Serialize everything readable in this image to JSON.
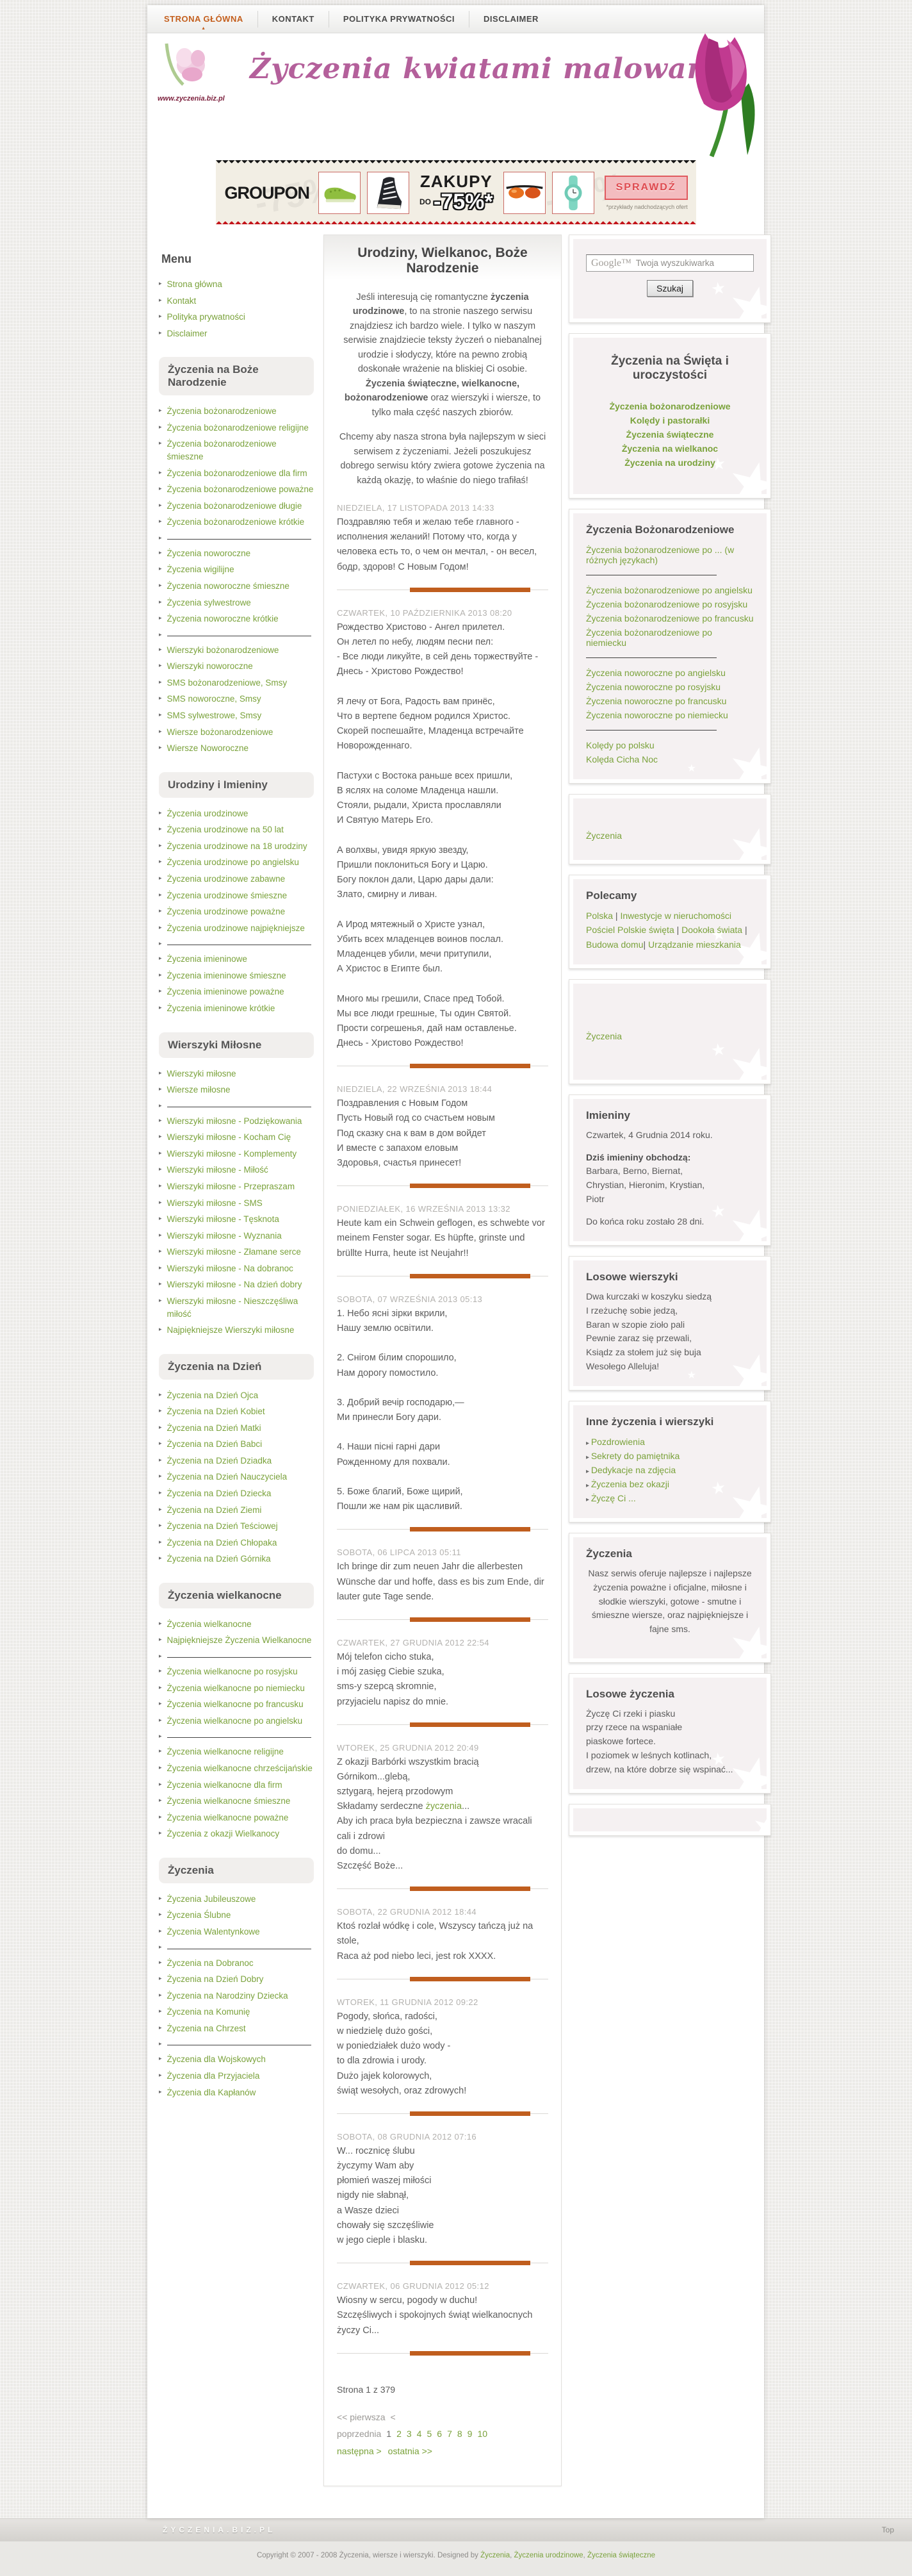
{
  "nav": {
    "items": [
      {
        "label": "STRONA GŁÓWNA",
        "active": true
      },
      {
        "label": "KONTAKT",
        "active": false
      },
      {
        "label": "POLITYKA PRYWATNOŚCI",
        "active": false
      },
      {
        "label": "DISCLAIMER",
        "active": false
      }
    ]
  },
  "header": {
    "title": "Życzenia kwiatami malowane",
    "url": "www.zyczenia.biz.pl"
  },
  "banner": {
    "brand": "GROUPON",
    "headline": "ZAKUPY",
    "do_label": "DO",
    "discount": "-75%*",
    "button": "SPRAWDŹ",
    "note": "*przykłady nadchodzących ofert",
    "watermark": "-75%"
  },
  "sidebar": {
    "heading": "Menu",
    "sections": [
      {
        "title": null,
        "items": [
          {
            "t": "Strona główna"
          },
          {
            "t": "Kontakt"
          },
          {
            "t": "Polityka prywatności"
          },
          {
            "t": "Disclaimer"
          }
        ]
      },
      {
        "title": "Życzenia na Boże Narodzenie",
        "items": [
          {
            "t": "Życzenia bożonarodzeniowe"
          },
          {
            "t": "Życzenia bożonarodzeniowe religijne"
          },
          {
            "t": "Życzenia bożonarodzeniowe śmieszne"
          },
          {
            "t": "Życzenia bożonarodzeniowe dla firm"
          },
          {
            "t": "Życzenia bożonarodzeniowe poważne"
          },
          {
            "t": "Życzenia bożonarodzeniowe długie"
          },
          {
            "t": "Życzenia bożonarodzeniowe krótkie"
          },
          {
            "d": true
          },
          {
            "t": "Życzenia noworoczne"
          },
          {
            "t": "Życzenia wigilijne"
          },
          {
            "t": "Życzenia noworoczne śmieszne"
          },
          {
            "t": "Życzenia sylwestrowe"
          },
          {
            "t": "Życzenia noworoczne krótkie"
          },
          {
            "d": true
          },
          {
            "t": "Wierszyki bożonarodzeniowe"
          },
          {
            "t": "Wierszyki noworoczne"
          },
          {
            "t": "SMS bożonarodzeniowe, Smsy"
          },
          {
            "t": "SMS noworoczne, Smsy"
          },
          {
            "t": "SMS sylwestrowe, Smsy"
          },
          {
            "t": "Wiersze bożonarodzeniowe"
          },
          {
            "t": "Wiersze Noworoczne"
          }
        ]
      },
      {
        "title": "Urodziny i Imieniny",
        "items": [
          {
            "t": "Życzenia urodzinowe"
          },
          {
            "t": "Życzenia urodzinowe na 50 lat"
          },
          {
            "t": "Życzenia urodzinowe na 18 urodziny"
          },
          {
            "t": "Życzenia urodzinowe po angielsku"
          },
          {
            "t": "Życzenia urodzinowe zabawne"
          },
          {
            "t": "Życzenia urodzinowe śmieszne"
          },
          {
            "t": "Życzenia urodzinowe poważne"
          },
          {
            "t": "Życzenia urodzinowe najpiękniejsze"
          },
          {
            "d": true
          },
          {
            "t": "Życzenia imieninowe"
          },
          {
            "t": "Życzenia imieninowe śmieszne"
          },
          {
            "t": "Życzenia imieninowe poważne"
          },
          {
            "t": "Życzenia imieninowe krótkie"
          }
        ]
      },
      {
        "title": "Wierszyki Miłosne",
        "items": [
          {
            "t": "Wierszyki miłosne"
          },
          {
            "t": "Wiersze miłosne"
          },
          {
            "d": true
          },
          {
            "t": "Wierszyki miłosne - Podziękowania"
          },
          {
            "t": "Wierszyki miłosne - Kocham Cię"
          },
          {
            "t": "Wierszyki miłosne - Komplementy"
          },
          {
            "t": "Wierszyki miłosne - Miłość"
          },
          {
            "t": "Wierszyki miłosne - Przepraszam"
          },
          {
            "t": "Wierszyki miłosne - SMS"
          },
          {
            "t": "Wierszyki miłosne - Tęsknota"
          },
          {
            "t": "Wierszyki miłosne - Wyznania"
          },
          {
            "t": "Wierszyki miłosne - Złamane serce"
          },
          {
            "t": "Wierszyki miłosne - Na dobranoc"
          },
          {
            "t": "Wierszyki miłosne - Na dzień dobry"
          },
          {
            "t": "Wierszyki miłosne - Nieszczęśliwa miłość"
          },
          {
            "t": "Najpiękniejsze Wierszyki miłosne"
          }
        ]
      },
      {
        "title": "Życzenia na Dzień",
        "items": [
          {
            "t": "Życzenia na Dzień Ojca"
          },
          {
            "t": "Życzenia na Dzień Kobiet"
          },
          {
            "t": "Życzenia na Dzień Matki"
          },
          {
            "t": "Życzenia na Dzień Babci"
          },
          {
            "t": "Życzenia na Dzień Dziadka"
          },
          {
            "t": "Życzenia na Dzień Nauczyciela"
          },
          {
            "t": "Życzenia na Dzień Dziecka"
          },
          {
            "t": "Życzenia na Dzień Ziemi"
          },
          {
            "t": "Życzenia na Dzień Teściowej"
          },
          {
            "t": "Życzenia na Dzień Chłopaka"
          },
          {
            "t": "Życzenia na Dzień Górnika"
          }
        ]
      },
      {
        "title": "Życzenia wielkanocne",
        "items": [
          {
            "t": "Życzenia wielkanocne"
          },
          {
            "t": "Najpiękniejsze Życzenia Wielkanocne"
          },
          {
            "d": true
          },
          {
            "t": "Życzenia wielkanocne po rosyjsku"
          },
          {
            "t": "Życzenia wielkanocne po niemiecku"
          },
          {
            "t": "Życzenia wielkanocne po francusku"
          },
          {
            "t": "Życzenia wielkanocne po angielsku"
          },
          {
            "d": true
          },
          {
            "t": "Życzenia wielkanocne religijne"
          },
          {
            "t": "Życzenia wielkanocne chrześcijańskie"
          },
          {
            "t": "Życzenia wielkanocne dla firm"
          },
          {
            "t": "Życzenia wielkanocne śmieszne"
          },
          {
            "t": "Życzenia wielkanocne poważne"
          },
          {
            "t": "Życzenia z okazji Wielkanocy"
          }
        ]
      },
      {
        "title": "Życzenia",
        "items": [
          {
            "t": "Życzenia Jubileuszowe"
          },
          {
            "t": "Życzenia Ślubne"
          },
          {
            "t": "Życzenia Walentynkowe"
          },
          {
            "d": true
          },
          {
            "t": "Życzenia na Dobranoc"
          },
          {
            "t": "Życzenia na Dzień Dobry"
          },
          {
            "t": "Życzenia na Narodziny Dziecka"
          },
          {
            "t": "Życzenia na Komunię"
          },
          {
            "t": "Życzenia na Chrzest"
          },
          {
            "d": true
          },
          {
            "t": "Życzenia dla Wojskowych"
          },
          {
            "t": "Życzenia dla Przyjaciela"
          },
          {
            "t": "Życzenia dla Kapłanów"
          }
        ]
      }
    ]
  },
  "main": {
    "title": "Urodziny, Wielkanoc, Boże Narodzenie",
    "intro1": [
      {
        "text": "Jeśli interesują cię romantyczne "
      },
      {
        "text": "życzenia urodzinowe",
        "style": "bold"
      },
      {
        "text": ", to na stronie naszego serwisu znajdziesz ich bardzo wiele. I tylko w naszym serwisie znajdziecie teksty życzeń o niebanalnej urodzie i słodyczy, które na pewno zrobią doskonałe wrażenie na bliskiej Ci osobie. "
      },
      {
        "text": "Życzenia świąteczne, wielkanocne, bożonarodzeniowe",
        "style": "bold"
      },
      {
        "text": " oraz wierszyki i wiersze, to tylko mała część naszych zbiorów."
      }
    ],
    "intro2": "Chcemy aby nasza strona była najlepszym w sieci serwisem z życzeniami. Jeżeli poszukujesz dobrego serwisu który zwiera gotowe życzenia na każdą okazję, to właśnie do niego trafiłaś!",
    "posts": [
      {
        "date": "NIEDZIELA, 17 LISTOPADA 2013 14:33",
        "text": "Поздравляю тебя и желаю тебе главного - исполнения желаний! Потому что, когда у человека есть то, о чем он мечтал, - он весел, бодр, здоров! С Новым Годом!"
      },
      {
        "date": "CZWARTEK, 10 PAŹDZIERNIKA 2013 08:20",
        "text": "Рождество Христово - Ангел прилетел.\nОн летел по небу, людям песни пел:\n- Все люди ликуйте, в сей день торжествуйте -\nДнесь - Христово Рождество!\n\nЯ лечу от Бога, Радость вам принёс,\nЧто в вертепе бедном родился Христос.\nСкорей поспешайте, Младенца встречайте\nНоворожденнаго.\n\nПастухи с Востока раньше всех пришли,\nВ яслях на соломе Младенца нашли.\nСтояли, рыдали, Христа прославляли\nИ Святую Матерь Его.\n\nА волхвы, увидя яркую звезду,\nПришли поклониться Богу и Царю.\nБогу поклон дали, Царю дары дали:\nЗлато, смирну и ливан.\n\nА Ирод мятежный о Христе узнал,\nУбить всех младенцев воинов послал.\nМладенцев убили, мечи притупили,\nА Христос в Египте был.\n\nМного мы грешили, Спасе пред Тобой.\nМы все люди грешные, Ты один Святой.\nПрости согрешенья, дай нам оставленье.\nДнесь - Христово Рождество!"
      },
      {
        "date": "NIEDZIELA, 22 WRZEŚNIA 2013 18:44",
        "text": "Поздравления с Новым Годом\nПусть Новый год со счастьем новым\nПод сказку сна к вам в дом войдет\nИ вместе с запахом еловым\nЗдоровья, счастья принесет!"
      },
      {
        "date": "PONIEDZIAŁEK, 16 WRZEŚNIA 2013 13:32",
        "text": "Heute kam ein Schwein geflogen, es schwebte vor meinem Fenster sogar. Es hüpfte, grinste und brüllte Hurra, heute ist Neujahr!!"
      },
      {
        "date": "SOBOTA, 07 WRZEŚNIA 2013 05:13",
        "text": "1. Небо ясні зірки вкрили,\nНашу землю освітили.\n\n2. Снігом білим спорошило,\nНам дорогу помостило.\n\n3. Добрий вечір господарю,—\nМи принесли Богу дари.\n\n4. Наши пісні гарні дари\nРожденному для похвали.\n\n5. Боже благий, Боже щирий,\nПошли же нам рік щасливий."
      },
      {
        "date": "SOBOTA, 06 LIPCA 2013 05:11",
        "text": "Ich bringe dir zum neuen Jahr die allerbesten Wünsche dar und hoffe, dass es bis zum Ende, dir lauter gute Tage sende."
      },
      {
        "date": "CZWARTEK, 27 GRUDNIA 2012 22:54",
        "text": "Mój telefon cicho stuka,\ni mój zasięg Ciebie szuka,\nsms-y szepcą skromnie,\nprzyjacielu napisz do mnie."
      },
      {
        "date": "WTOREK, 25 GRUDNIA 2012 20:49",
        "segments": [
          {
            "text": "Z okazji Barbórki wszystkim bracią Górnikom...glebą,\nsztygarą, hejerą przodowym\nSkładamy serdeczne "
          },
          {
            "text": "życzenia",
            "style": "link"
          },
          {
            "text": "...\nAby ich praca była bezpieczna i zawsze wracali cali i zdrowi\ndo domu...\nSzczęść Boże..."
          }
        ]
      },
      {
        "date": "SOBOTA, 22 GRUDNIA 2012 18:44",
        "text": "Ktoś rozlał wódkę i cole, Wszyscy tańczą już na stole,\nRaca aż pod niebo leci, jest rok XXXX."
      },
      {
        "date": "WTOREK, 11 GRUDNIA 2012 09:22",
        "text": "Pogody, słońca, radości,\nw niedzielę dużo gości,\nw poniedziałek dużo wody -\nto dla zdrowia i urody.\nDużo jajek kolorowych,\nświąt wesołych, oraz zdrowych!"
      },
      {
        "date": "SOBOTA, 08 GRUDNIA 2012 07:16",
        "text": "W... rocznicę ślubu\nżyczymy Wam aby\npłomień waszej miłości\nnigdy nie słabnął,\na Wasze dzieci\nchowały się szczęśliwie\nw jego cieple i blasku."
      },
      {
        "date": "CZWARTEK, 06 GRUDNIA 2012 05:12",
        "text": "Wiosny w sercu, pogody w duchu!\nSzczęśliwych i spokojnych świąt wielkanocnych życzy Ci..."
      }
    ],
    "pagination": {
      "status": "Strona 1 z 379",
      "first": "<< pierwsza",
      "prev": "< poprzednia",
      "current": "1",
      "pages": [
        "2",
        "3",
        "4",
        "5",
        "6",
        "7",
        "8",
        "9",
        "10"
      ],
      "next": "następna >",
      "last": "ostatnia >>"
    }
  },
  "right": {
    "search": {
      "watermark": "Google™",
      "placeholder": "Twoja wyszukiwarka",
      "button": "Szukaj"
    },
    "celebrations": {
      "title": "Życzenia na Święta i uroczystości",
      "links": [
        "Życzenia bożonarodzeniowe",
        "Kolędy i pastorałki",
        "Życzenia świąteczne",
        "Życzenia na wielkanoc",
        "Życzenia na urodziny"
      ]
    },
    "christmas": {
      "title": "Życzenia Bożonarodzeniowe",
      "groups": [
        [
          "Życzenia bożonarodzeniowe po ... (w różnych językach)"
        ],
        [
          "Życzenia bożonarodzeniowe po angielsku",
          "Życzenia bożonarodzeniowe po rosyjsku",
          "Życzenia bożonarodzeniowe po francusku",
          "Życzenia bożonarodzeniowe po niemiecku"
        ],
        [
          "Życzenia noworoczne po angielsku",
          "Życzenia noworoczne po rosyjsku",
          "Życzenia noworoczne po francusku",
          "Życzenia noworoczne po niemiecku"
        ],
        [
          "Kolędy po polsku",
          "Kolęda Cicha Noc"
        ]
      ]
    },
    "single_link": "Życzenia",
    "polecamy": {
      "title": "Polecamy",
      "segments": [
        {
          "t": "Polska"
        },
        {
          "s": " | "
        },
        {
          "t": "Inwestycje w nieruchomości"
        },
        {
          "s": " "
        },
        {
          "t": "Pościel"
        },
        {
          "s": " "
        },
        {
          "t": "Polskie święta"
        },
        {
          "s": " | "
        },
        {
          "t": "Dookoła świata"
        },
        {
          "s": " | "
        },
        {
          "t": "Budowa domu"
        },
        {
          "s": "| "
        },
        {
          "t": "Urządzanie mieszkania"
        }
      ]
    },
    "imieniny": {
      "title": "Imieniny",
      "date_line": "Czwartek, 4 Grudnia 2014 roku.",
      "label": "Dziś imieniny obchodzą:",
      "names": "Barbara, Berno, Biernat,\nChrystian, Hieronim, Krystian,\nPiotr",
      "days_left": "Do końca roku zostało 28 dni."
    },
    "losowe_wierszyki": {
      "title": "Losowe wierszyki",
      "text": "Dwa kurczaki w koszyku siedzą\nI rzeżuchę sobie jedzą,\nBaran w szopie zioło pali\nPewnie zaraz się przewali,\nKsiądz za stołem już się buja\nWesołego Alleluja!"
    },
    "inne": {
      "title": "Inne życzenia i wierszyki",
      "links": [
        "Pozdrowienia",
        "Sekrety do pamiętnika",
        "Dedykacje na zdjęcia",
        "Życzenia bez okazji",
        "Życzę Ci ..."
      ]
    },
    "zyczenia_box": {
      "title": "Życzenia",
      "text": "Nasz serwis oferuje najlepsze i najlepsze życzenia poważne i oficjalne, miłosne i słodkie wierszyki,  gotowe - smutne i śmieszne wiersze, oraz najpiękniejsze i fajne sms."
    },
    "losowe_zyczenia": {
      "title": "Losowe życzenia",
      "text": "Życzę Ci rzeki i piasku\nprzy rzece na wspaniałe\npiaskowe fortece.\nI poziomek w leśnych kotlinach,\ndrzew, na które dobrze się wspinać..."
    }
  },
  "footer": {
    "site": "ŻYCZENIA.BIZ.PL",
    "top": "Top",
    "copyright_prefix": "Copyright © 2007 - 2008 Życzenia, wiersze i wierszyki. Designed by ",
    "links": [
      "Życzenia",
      "Życzenia urodzinowe",
      "Życzenia świąteczne"
    ],
    "link_sep": ", "
  },
  "colors": {
    "accent_orange": "#C45F1D",
    "link_green": "#7AA23B",
    "brand_pink": "#B4609B",
    "banner_red": "#C3151B"
  }
}
